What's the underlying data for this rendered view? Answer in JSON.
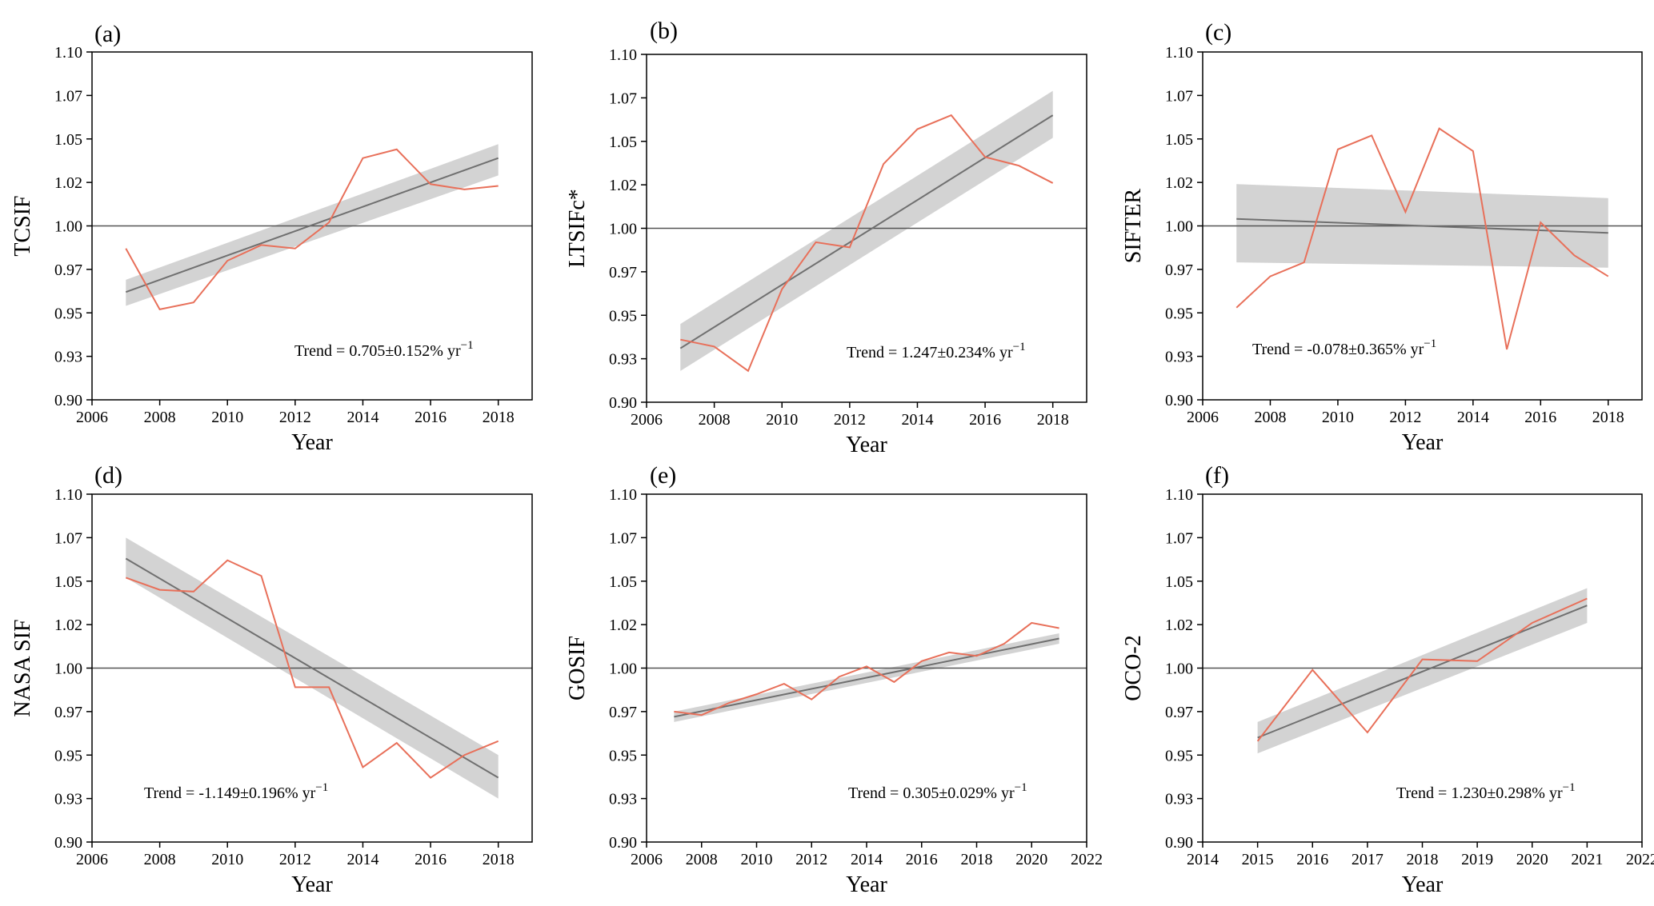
{
  "colors": {
    "observed": "#e8705a",
    "trend_line": "#707070",
    "band": "#d3d3d3",
    "reference": "#555555",
    "axis": "#000000"
  },
  "chart_data": [
    {
      "id": "a",
      "panel_label": "(a)",
      "type": "line",
      "ylabel": "TCSIF",
      "xlabel": "Year",
      "xlim": [
        2006,
        2019
      ],
      "xticks": [
        2006,
        2008,
        2010,
        2012,
        2014,
        2016,
        2018
      ],
      "ylim": [
        0.9,
        1.1
      ],
      "yticks": [
        0.9,
        0.925,
        0.95,
        0.975,
        1.0,
        1.025,
        1.05,
        1.075,
        1.1
      ],
      "ytick_labels": [
        "0.90",
        "0.93",
        "0.95",
        "0.97",
        "1.00",
        "1.02",
        "1.05",
        "1.07",
        "1.10"
      ],
      "x": [
        2007,
        2008,
        2009,
        2010,
        2011,
        2012,
        2013,
        2014,
        2015,
        2016,
        2017,
        2018
      ],
      "observed": [
        0.987,
        0.952,
        0.956,
        0.98,
        0.989,
        0.987,
        1.002,
        1.039,
        1.044,
        1.024,
        1.021,
        1.023
      ],
      "fit_start": [
        2007,
        0.962
      ],
      "fit_end": [
        2018,
        1.039
      ],
      "band_start": [
        0.954,
        0.969
      ],
      "band_end": [
        1.029,
        1.047
      ],
      "trend_text": "Trend = 0.705±0.152% yr",
      "trend_exp": "−1"
    },
    {
      "id": "b",
      "panel_label": "(b)",
      "type": "line",
      "ylabel": "LTSIFc*",
      "xlabel": "Year",
      "xlim": [
        2006,
        2019
      ],
      "xticks": [
        2006,
        2008,
        2010,
        2012,
        2014,
        2016,
        2018
      ],
      "ylim": [
        0.9,
        1.1
      ],
      "yticks": [
        0.9,
        0.925,
        0.95,
        0.975,
        1.0,
        1.025,
        1.05,
        1.075,
        1.1
      ],
      "ytick_labels": [
        "0.90",
        "0.93",
        "0.95",
        "0.97",
        "1.00",
        "1.02",
        "1.05",
        "1.07",
        "1.10"
      ],
      "x": [
        2007,
        2008,
        2009,
        2010,
        2011,
        2012,
        2013,
        2014,
        2015,
        2016,
        2017,
        2018
      ],
      "observed": [
        0.936,
        0.932,
        0.918,
        0.965,
        0.992,
        0.989,
        1.037,
        1.057,
        1.065,
        1.041,
        1.036,
        1.026
      ],
      "fit_start": [
        2007,
        0.931
      ],
      "fit_end": [
        2018,
        1.065
      ],
      "band_start": [
        0.918,
        0.945
      ],
      "band_end": [
        1.052,
        1.079
      ],
      "trend_text": "Trend = 1.247±0.234% yr",
      "trend_exp": "−1"
    },
    {
      "id": "c",
      "panel_label": "(c)",
      "type": "line",
      "ylabel": "SIFTER",
      "xlabel": "Year",
      "xlim": [
        2006,
        2019
      ],
      "xticks": [
        2006,
        2008,
        2010,
        2012,
        2014,
        2016,
        2018
      ],
      "ylim": [
        0.9,
        1.1
      ],
      "yticks": [
        0.9,
        0.925,
        0.95,
        0.975,
        1.0,
        1.025,
        1.05,
        1.075,
        1.1
      ],
      "ytick_labels": [
        "0.90",
        "0.93",
        "0.95",
        "0.97",
        "1.00",
        "1.02",
        "1.05",
        "1.07",
        "1.10"
      ],
      "x": [
        2007,
        2008,
        2009,
        2010,
        2011,
        2012,
        2013,
        2014,
        2015,
        2016,
        2017,
        2018
      ],
      "observed": [
        0.953,
        0.971,
        0.979,
        1.044,
        1.052,
        1.008,
        1.056,
        1.043,
        0.929,
        1.002,
        0.983,
        0.971
      ],
      "fit_start": [
        2007,
        1.004
      ],
      "fit_end": [
        2018,
        0.996
      ],
      "band_start": [
        0.979,
        1.024
      ],
      "band_end": [
        0.976,
        1.016
      ],
      "trend_text": "Trend = -0.078±0.365% yr",
      "trend_exp": "−1"
    },
    {
      "id": "d",
      "panel_label": "(d)",
      "type": "line",
      "ylabel": "NASA SIF",
      "xlabel": "Year",
      "xlim": [
        2006,
        2019
      ],
      "xticks": [
        2006,
        2008,
        2010,
        2012,
        2014,
        2016,
        2018
      ],
      "ylim": [
        0.9,
        1.1
      ],
      "yticks": [
        0.9,
        0.925,
        0.95,
        0.975,
        1.0,
        1.025,
        1.05,
        1.075,
        1.1
      ],
      "ytick_labels": [
        "0.90",
        "0.93",
        "0.95",
        "0.97",
        "1.00",
        "1.02",
        "1.05",
        "1.07",
        "1.10"
      ],
      "x": [
        2007,
        2008,
        2009,
        2010,
        2011,
        2012,
        2013,
        2014,
        2015,
        2016,
        2017,
        2018
      ],
      "observed": [
        1.052,
        1.045,
        1.044,
        1.062,
        1.053,
        0.989,
        0.989,
        0.943,
        0.957,
        0.937,
        0.95,
        0.958
      ],
      "fit_start": [
        2007,
        1.063
      ],
      "fit_end": [
        2018,
        0.937
      ],
      "band_start": [
        1.052,
        1.075
      ],
      "band_end": [
        0.925,
        0.95
      ],
      "trend_text": "Trend = -1.149±0.196% yr",
      "trend_exp": "−1"
    },
    {
      "id": "e",
      "panel_label": "(e)",
      "type": "line",
      "ylabel": "GOSIF",
      "xlabel": "Year",
      "xlim": [
        2006,
        2022
      ],
      "xticks": [
        2006,
        2008,
        2010,
        2012,
        2014,
        2016,
        2018,
        2020,
        2022
      ],
      "ylim": [
        0.9,
        1.1
      ],
      "yticks": [
        0.9,
        0.925,
        0.95,
        0.975,
        1.0,
        1.025,
        1.05,
        1.075,
        1.1
      ],
      "ytick_labels": [
        "0.90",
        "0.93",
        "0.95",
        "0.97",
        "1.00",
        "1.02",
        "1.05",
        "1.07",
        "1.10"
      ],
      "x": [
        2007,
        2008,
        2009,
        2010,
        2011,
        2012,
        2013,
        2014,
        2015,
        2016,
        2017,
        2018,
        2019,
        2020,
        2021
      ],
      "observed": [
        0.975,
        0.973,
        0.98,
        0.985,
        0.991,
        0.982,
        0.995,
        1.001,
        0.992,
        1.004,
        1.009,
        1.007,
        1.014,
        1.026,
        1.023
      ],
      "fit_start": [
        2007,
        0.972
      ],
      "fit_end": [
        2021,
        1.017
      ],
      "band_start": [
        0.969,
        0.975
      ],
      "band_end": [
        1.014,
        1.02
      ],
      "trend_text": "Trend = 0.305±0.029% yr",
      "trend_exp": "−1"
    },
    {
      "id": "f",
      "panel_label": "(f)",
      "type": "line",
      "ylabel": "OCO-2",
      "xlabel": "Year",
      "xlim": [
        2014,
        2022
      ],
      "xticks": [
        2014,
        2015,
        2016,
        2017,
        2018,
        2019,
        2020,
        2021,
        2022
      ],
      "ylim": [
        0.9,
        1.1
      ],
      "yticks": [
        0.9,
        0.925,
        0.95,
        0.975,
        1.0,
        1.025,
        1.05,
        1.075,
        1.1
      ],
      "ytick_labels": [
        "0.90",
        "0.93",
        "0.95",
        "0.97",
        "1.00",
        "1.02",
        "1.05",
        "1.07",
        "1.10"
      ],
      "x": [
        2015,
        2016,
        2017,
        2018,
        2019,
        2020,
        2021
      ],
      "observed": [
        0.958,
        0.999,
        0.963,
        1.005,
        1.004,
        1.026,
        1.04
      ],
      "fit_start": [
        2015,
        0.96
      ],
      "fit_end": [
        2021,
        1.036
      ],
      "band_start": [
        0.951,
        0.969
      ],
      "band_end": [
        1.026,
        1.046
      ],
      "trend_text": "Trend = 1.230±0.298% yr",
      "trend_exp": "−1"
    }
  ]
}
